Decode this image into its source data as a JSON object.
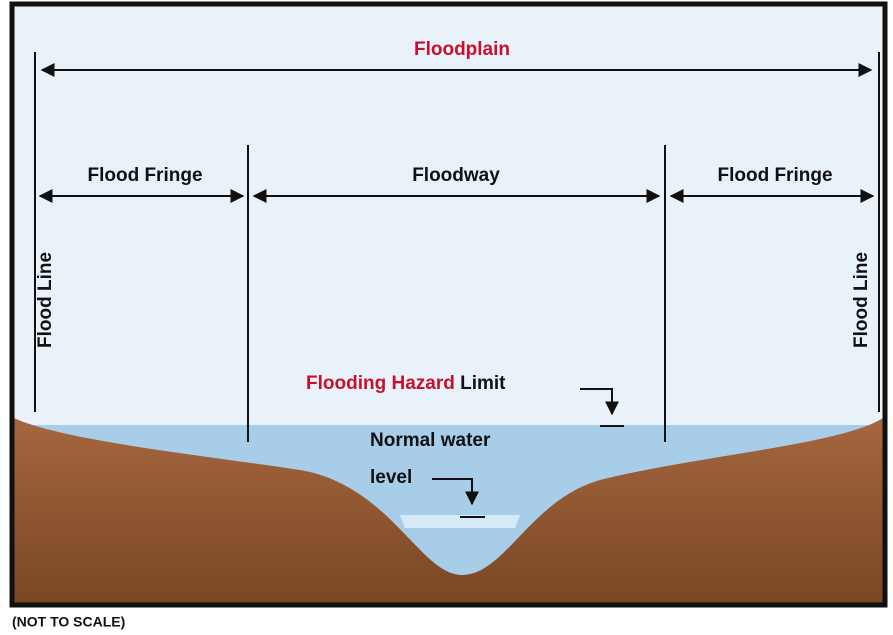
{
  "floodplain": {
    "label": "Floodplain"
  },
  "zones": [
    {
      "label": "Flood Fringe"
    },
    {
      "label": "Floodway"
    },
    {
      "label": "Flood Fringe"
    }
  ],
  "flood_lines": [
    "Flood Line",
    "Flood Line"
  ],
  "hazard_limit": {
    "highlight": "Flooding Hazard",
    "label": "Limit"
  },
  "normal_water": [
    "Normal water",
    "level"
  ],
  "note": "(NOT TO SCALE)"
}
